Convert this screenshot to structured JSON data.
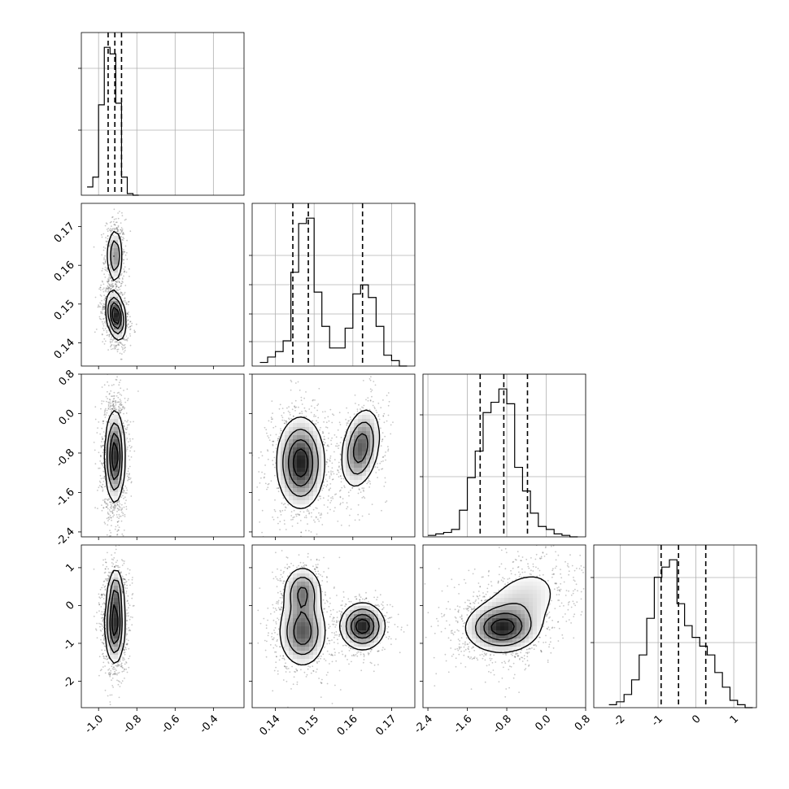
{
  "chart_data": {
    "type": "corner",
    "panels": [
      {
        "id": "hist-p0",
        "row": 0,
        "col": 0,
        "kind": "hist",
        "xlim": [
          -1.09,
          -0.24
        ],
        "bins": [
          -1.06,
          -1.03,
          -1.0,
          -0.97,
          -0.94,
          -0.91,
          -0.88,
          -0.85,
          -0.82,
          -0.79
        ],
        "counts": [
          0.05,
          0.11,
          0.55,
          0.9,
          0.86,
          0.56,
          0.11,
          0.01,
          0.0
        ],
        "quantiles": [
          -0.95,
          -0.915,
          -0.88
        ],
        "ygrid": [
          0.4,
          0.78
        ],
        "xgrid": [
          -1.0,
          -0.8,
          -0.6,
          -0.4
        ]
      },
      {
        "id": "hist-p1",
        "row": 1,
        "col": 1,
        "kind": "hist",
        "xlim": [
          0.134,
          0.176
        ],
        "bins": [
          0.136,
          0.138,
          0.14,
          0.142,
          0.144,
          0.146,
          0.148,
          0.15,
          0.152,
          0.154,
          0.156,
          0.158,
          0.16,
          0.162,
          0.164,
          0.166,
          0.168,
          0.17,
          0.172,
          0.174
        ],
        "counts": [
          0.02,
          0.05,
          0.08,
          0.14,
          0.52,
          0.79,
          0.82,
          0.41,
          0.22,
          0.1,
          0.1,
          0.21,
          0.4,
          0.45,
          0.38,
          0.22,
          0.06,
          0.03,
          0.0
        ],
        "quantiles": [
          0.1445,
          0.1485,
          0.1625
        ],
        "ygrid": [
          0.15,
          0.32,
          0.5,
          0.68
        ],
        "xgrid": [
          0.14,
          0.15,
          0.16,
          0.17
        ]
      },
      {
        "id": "hist-p2",
        "row": 2,
        "col": 2,
        "kind": "hist",
        "xlim": [
          -2.5,
          0.8
        ],
        "bins": [
          -2.4,
          -2.24,
          -2.08,
          -1.92,
          -1.76,
          -1.6,
          -1.44,
          -1.28,
          -1.12,
          -0.96,
          -0.8,
          -0.64,
          -0.48,
          -0.32,
          -0.16,
          0.0,
          0.16,
          0.32,
          0.48,
          0.64
        ],
        "counts": [
          0.01,
          0.02,
          0.03,
          0.05,
          0.18,
          0.4,
          0.58,
          0.84,
          0.91,
          1.0,
          0.9,
          0.47,
          0.31,
          0.16,
          0.07,
          0.05,
          0.02,
          0.01,
          0.0
        ],
        "quantiles": [
          -1.34,
          -0.86,
          -0.38
        ],
        "ygrid": [
          0.37,
          0.75
        ],
        "xgrid": [
          -2.4,
          -1.6,
          -0.8,
          0.0,
          0.8
        ]
      },
      {
        "id": "hist-p3",
        "row": 3,
        "col": 3,
        "kind": "hist",
        "xlim": [
          -2.7,
          1.6
        ],
        "bins": [
          -2.3,
          -2.1,
          -1.9,
          -1.7,
          -1.5,
          -1.3,
          -1.1,
          -0.9,
          -0.7,
          -0.5,
          -0.3,
          -0.1,
          0.1,
          0.3,
          0.5,
          0.7,
          0.9,
          1.1,
          1.3,
          1.5
        ],
        "counts": [
          0.02,
          0.04,
          0.09,
          0.19,
          0.36,
          0.61,
          0.89,
          0.96,
          1.01,
          0.71,
          0.56,
          0.48,
          0.42,
          0.36,
          0.24,
          0.14,
          0.05,
          0.02,
          0.0
        ],
        "quantiles": [
          -0.92,
          -0.46,
          0.26
        ],
        "ygrid": [
          0.4,
          0.8
        ],
        "xgrid": [
          -2,
          -1,
          0,
          1
        ]
      },
      {
        "id": "scatter-p1-p0",
        "row": 1,
        "col": 0,
        "kind": "2d",
        "xlim": [
          -1.09,
          -0.24
        ],
        "ylim": [
          0.134,
          0.176
        ],
        "xgrid": [
          -1.0,
          -0.8,
          -0.6,
          -0.4
        ],
        "ygrid": [
          0.14,
          0.15,
          0.16,
          0.17
        ],
        "modes": [
          {
            "cx": -0.915,
            "cy": 0.1625,
            "sx": 0.02,
            "sy": 0.0035,
            "w": 0.35
          },
          {
            "cx": -0.91,
            "cy": 0.147,
            "sx": 0.025,
            "sy": 0.003,
            "w": 0.65,
            "rho": -0.3
          }
        ]
      },
      {
        "id": "scatter-p2-p0",
        "row": 2,
        "col": 0,
        "kind": "2d",
        "xlim": [
          -1.09,
          -0.24
        ],
        "ylim": [
          -2.5,
          0.8
        ],
        "xgrid": [
          -1.0,
          -0.8,
          -0.6,
          -0.4
        ],
        "ygrid": [
          -2.4,
          -1.6,
          -0.8,
          0.0,
          0.8
        ],
        "modes": [
          {
            "cx": -0.915,
            "cy": -0.87,
            "sx": 0.025,
            "sy": 0.45,
            "w": 1.0
          }
        ]
      },
      {
        "id": "scatter-p2-p1",
        "row": 2,
        "col": 1,
        "kind": "2d",
        "xlim": [
          0.134,
          0.176
        ],
        "ylim": [
          -2.5,
          0.8
        ],
        "xgrid": [
          0.14,
          0.15,
          0.16,
          0.17
        ],
        "ygrid": [
          -2.4,
          -1.6,
          -0.8,
          0.0,
          0.8
        ],
        "modes": [
          {
            "cx": 0.1465,
            "cy": -1.0,
            "sx": 0.003,
            "sy": 0.45,
            "w": 0.65
          },
          {
            "cx": 0.162,
            "cy": -0.7,
            "sx": 0.0025,
            "sy": 0.4,
            "w": 0.35,
            "rho": 0.3
          }
        ]
      },
      {
        "id": "scatter-p3-p0",
        "row": 3,
        "col": 0,
        "kind": "2d",
        "xlim": [
          -1.09,
          -0.24
        ],
        "ylim": [
          -2.7,
          1.6
        ],
        "xgrid": [
          -1.0,
          -0.8,
          -0.6,
          -0.4
        ],
        "ygrid": [
          -2,
          -1,
          0,
          1
        ],
        "modes": [
          {
            "cx": -0.915,
            "cy": -0.5,
            "sx": 0.025,
            "sy": 0.5,
            "w": 0.8
          },
          {
            "cx": -0.91,
            "cy": 0.35,
            "sx": 0.02,
            "sy": 0.35,
            "w": 0.2
          }
        ]
      },
      {
        "id": "scatter-p3-p1",
        "row": 3,
        "col": 1,
        "kind": "2d",
        "xlim": [
          0.134,
          0.176
        ],
        "ylim": [
          -2.7,
          1.6
        ],
        "xgrid": [
          0.14,
          0.15,
          0.16,
          0.17
        ],
        "ygrid": [
          -2,
          -1,
          0,
          1
        ],
        "modes": [
          {
            "cx": 0.147,
            "cy": 0.35,
            "sx": 0.0025,
            "sy": 0.35,
            "w": 0.22
          },
          {
            "cx": 0.147,
            "cy": -0.7,
            "sx": 0.003,
            "sy": 0.45,
            "w": 0.43
          },
          {
            "cx": 0.1625,
            "cy": -0.55,
            "sx": 0.0028,
            "sy": 0.3,
            "w": 0.35
          }
        ]
      },
      {
        "id": "scatter-p3-p2",
        "row": 3,
        "col": 2,
        "kind": "2d",
        "xlim": [
          -2.5,
          0.8
        ],
        "ylim": [
          -2.7,
          1.6
        ],
        "xgrid": [
          -2.4,
          -1.6,
          -0.8,
          0.0,
          0.8
        ],
        "ygrid": [
          -2,
          -1,
          0,
          1
        ],
        "modes": [
          {
            "cx": -0.9,
            "cy": -0.6,
            "sx": 0.35,
            "sy": 0.3,
            "w": 0.55
          },
          {
            "cx": -0.55,
            "cy": 0.0,
            "sx": 0.5,
            "sy": 0.6,
            "w": 0.45,
            "rho": 0.4
          }
        ]
      }
    ],
    "xtick_labels": [
      [
        "-1.0",
        "-0.8",
        "-0.6",
        "-0.4"
      ],
      [
        "0.14",
        "0.15",
        "0.16",
        "0.17"
      ],
      [
        "-2.4",
        "-1.6",
        "-0.8",
        "0.0",
        "0.8"
      ],
      [
        "-2",
        "-1",
        "0",
        "1"
      ]
    ],
    "ytick_labels": [
      [],
      [
        "0.14",
        "0.15",
        "0.16",
        "0.17"
      ],
      [
        "-2.4",
        "-1.6",
        "-0.8",
        "0.0",
        "0.8"
      ],
      [
        "-2",
        "-1",
        "0",
        "1"
      ]
    ],
    "grid": true
  }
}
